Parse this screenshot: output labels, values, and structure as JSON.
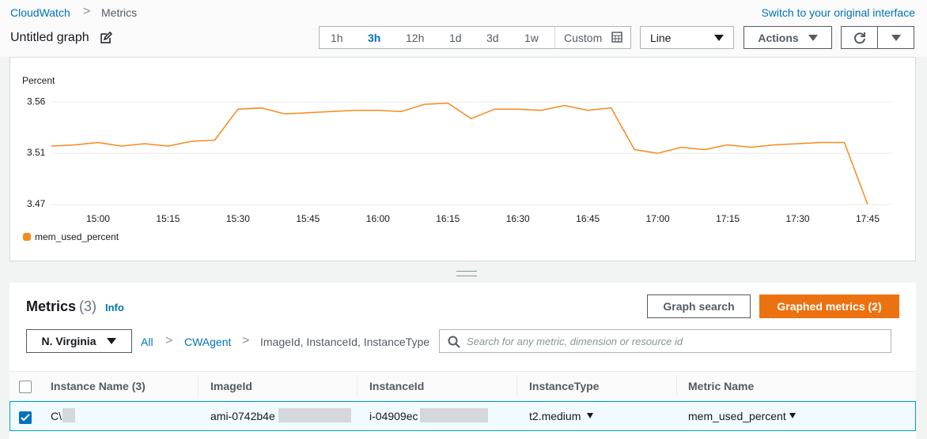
{
  "breadcrumb": [
    "CloudWatch",
    "Metrics"
  ],
  "switch_link": "Switch to your original interface",
  "graph_title": "Untitled graph",
  "time_ranges": [
    "1h",
    "3h",
    "12h",
    "1d",
    "3d",
    "1w",
    "Custom"
  ],
  "view_select": "Line",
  "actions": "Actions",
  "chart_data": {
    "type": "line",
    "y_label": "Percent",
    "x": [
      "14:50",
      "14:55",
      "15:00",
      "15:05",
      "15:10",
      "15:15",
      "15:20",
      "15:25",
      "15:30",
      "15:35",
      "15:40",
      "15:45",
      "15:50",
      "15:55",
      "16:00",
      "16:05",
      "16:10",
      "16:15",
      "16:20",
      "16:25",
      "16:30",
      "16:35",
      "16:40",
      "16:45",
      "16:50",
      "16:55",
      "17:00",
      "17:05",
      "17:10",
      "17:15",
      "17:20",
      "17:25",
      "17:30",
      "17:35",
      "17:40",
      "17:45"
    ],
    "xticks": [
      "15:00",
      "15:15",
      "15:30",
      "15:45",
      "16:00",
      "16:15",
      "16:30",
      "16:45",
      "17:00",
      "17:15",
      "17:30",
      "17:45"
    ],
    "series": [
      {
        "name": "mem_used_percent",
        "color": "#f7891c",
        "values": [
          3.519,
          3.52,
          3.522,
          3.519,
          3.521,
          3.519,
          3.523,
          3.524,
          3.55,
          3.551,
          3.546,
          3.547,
          3.548,
          3.549,
          3.549,
          3.548,
          3.554,
          3.555,
          3.542,
          3.55,
          3.55,
          3.549,
          3.553,
          3.549,
          3.551,
          3.516,
          3.513,
          3.518,
          3.516,
          3.52,
          3.518,
          3.52,
          3.521,
          3.522,
          3.522,
          3.47
        ]
      }
    ],
    "ylim": [
      3.47,
      3.57
    ],
    "yticks": [
      3.47,
      {
        "value": 3.513,
        "label": "3.51"
      },
      {
        "value": 3.556,
        "label": "3.56"
      }
    ],
    "grid": true
  },
  "metrics_panel": {
    "title": "Metrics",
    "count": "(3)",
    "info": "Info",
    "graph_search": "Graph search",
    "graphed_metrics": "Graphed metrics (2)",
    "region": "N. Virginia",
    "path": [
      "All",
      "CWAgent",
      "ImageId, InstanceId, InstanceType"
    ],
    "search_placeholder": "Search for any metric, dimension or resource id"
  },
  "table": {
    "headers": [
      "Instance Name (3)",
      "ImageId",
      "InstanceId",
      "InstanceType",
      "Metric Name"
    ],
    "rows": [
      [
        "C\\",
        "ami-0742b4e",
        "i-04909ec",
        "t2.medium",
        "mem_used_percent"
      ]
    ]
  }
}
